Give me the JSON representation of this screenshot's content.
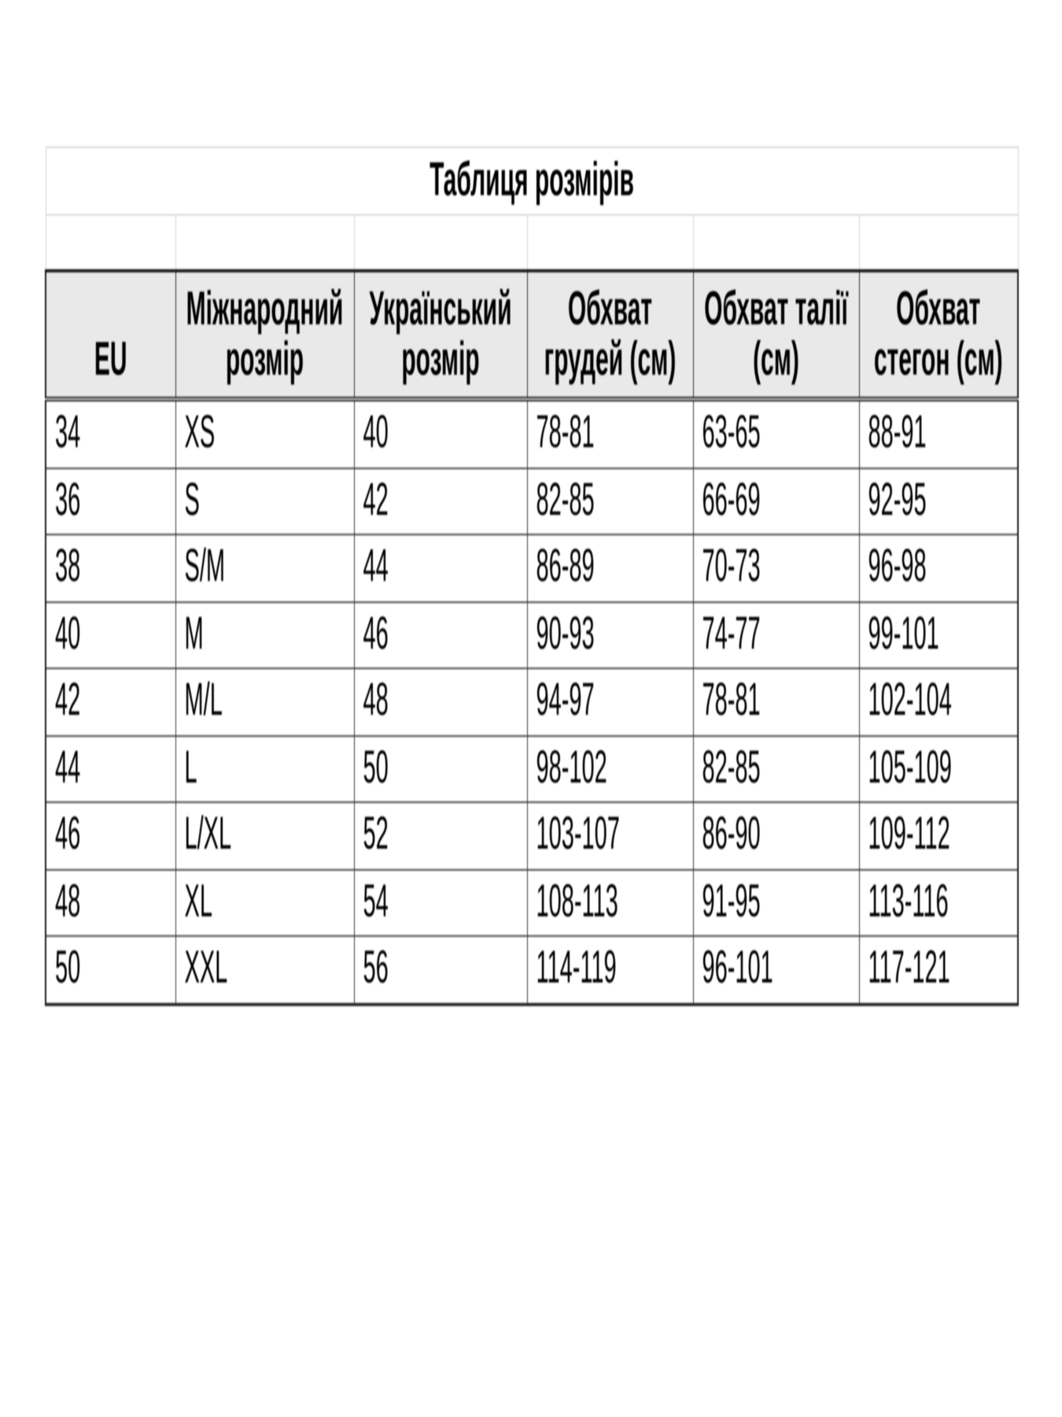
{
  "page": {
    "background": "#ffffff"
  },
  "chart_data": {
    "type": "table",
    "title": "Таблиця розмірів",
    "columns": [
      {
        "line1": "EU",
        "line2": ""
      },
      {
        "line1": "Міжнародний",
        "line2": "розмір"
      },
      {
        "line1": "Український",
        "line2": "розмір"
      },
      {
        "line1": "Обхват",
        "line2": "грудей (см)"
      },
      {
        "line1": "Обхват талії",
        "line2": "(см)"
      },
      {
        "line1": "Обхват",
        "line2": "стегон (см)"
      }
    ],
    "rows": [
      [
        "34",
        "XS",
        "40",
        "78-81",
        "63-65",
        "88-91"
      ],
      [
        "36",
        "S",
        "42",
        "82-85",
        "66-69",
        "92-95"
      ],
      [
        "38",
        "S/M",
        "44",
        "86-89",
        "70-73",
        "96-98"
      ],
      [
        "40",
        "M",
        "46",
        "90-93",
        "74-77",
        "99-101"
      ],
      [
        "42",
        "M/L",
        "48",
        "94-97",
        "78-81",
        "102-104"
      ],
      [
        "44",
        "L",
        "50",
        "98-102",
        "82-85",
        "105-109"
      ],
      [
        "46",
        "L/XL",
        "52",
        "103-107",
        "86-90",
        "109-112"
      ],
      [
        "48",
        "XL",
        "54",
        "108-113",
        "91-95",
        "113-116"
      ],
      [
        "50",
        "XXL",
        "56",
        "114-119",
        "96-101",
        "117-121"
      ]
    ],
    "layout": {
      "legend": "none",
      "grid": "on",
      "header_valign": "bottom",
      "data_align": "left"
    },
    "colors": {
      "header_background": "#e9e9e9",
      "border_dark": "#2a2a2a",
      "border_light": "#d6d6d6",
      "text": "#000000",
      "page_background": "#ffffff"
    }
  }
}
